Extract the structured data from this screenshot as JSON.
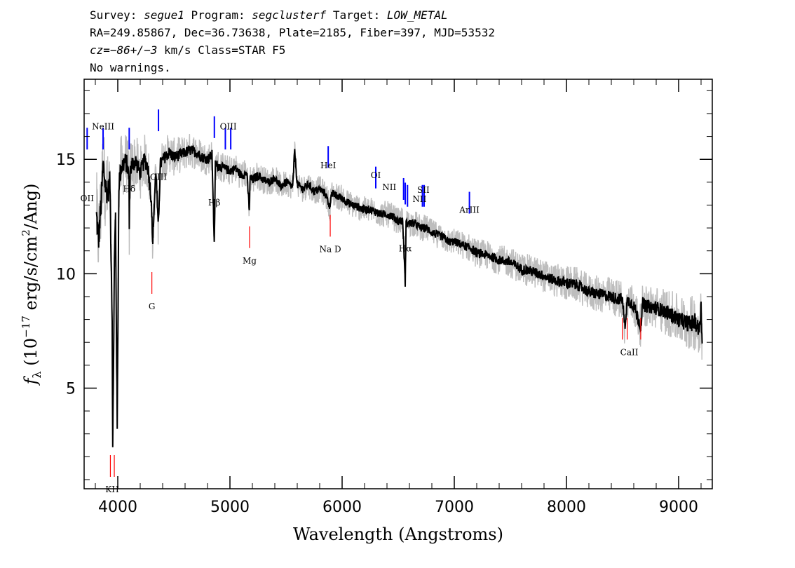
{
  "header": {
    "line1": {
      "survey_label": "Survey:",
      "survey": "segue1",
      "program_label": "Program:",
      "program": "segclusterf",
      "target_label": "Target:",
      "target": "LOW_METAL"
    },
    "line2": "RA=249.85867, Dec=36.73638, Plate=2185, Fiber=397, MJD=53532",
    "line3": {
      "cz": "cz=−86+/−3",
      "rest": " km/s Class=STAR F5"
    },
    "line4": "No warnings."
  },
  "colors": {
    "flux": "#000000",
    "error": "#bdbdbd",
    "emission": "#0000ff",
    "absorption": "#ff0000"
  },
  "chart_data": {
    "type": "line",
    "xlabel": "Wavelength (Angstroms)",
    "ylabel_parts": [
      "f",
      "λ",
      " (10",
      "−17",
      " erg/s/cm",
      "2",
      "/Ang)"
    ],
    "xlim": [
      3700,
      9300
    ],
    "ylim": [
      0.6,
      18.5
    ],
    "x_ticks": [
      4000,
      5000,
      6000,
      7000,
      8000,
      9000
    ],
    "x_tick_labels": [
      "4000",
      "5000",
      "6000",
      "7000",
      "8000",
      "9000"
    ],
    "y_ticks": [
      5,
      10,
      15
    ],
    "y_tick_labels": [
      "5",
      "10",
      "15"
    ],
    "series": [
      {
        "role": "flux",
        "x": [
          3810,
          3830,
          3850,
          3870,
          3890,
          3910,
          3930,
          3950,
          3955,
          3970,
          3980,
          3995,
          4010,
          4030,
          4060,
          4080,
          4100,
          4102,
          4110,
          4130,
          4160,
          4200,
          4240,
          4270,
          4300,
          4310,
          4340,
          4360,
          4380,
          4420,
          4460,
          4500,
          4560,
          4600,
          4650,
          4700,
          4750,
          4800,
          4840,
          4861,
          4870,
          4900,
          4950,
          5000,
          5050,
          5100,
          5150,
          5173,
          5180,
          5200,
          5250,
          5300,
          5350,
          5400,
          5450,
          5500,
          5560,
          5577,
          5600,
          5650,
          5700,
          5750,
          5800,
          5850,
          5893,
          5900,
          5950,
          6000,
          6050,
          6100,
          6150,
          6200,
          6250,
          6300,
          6350,
          6400,
          6450,
          6500,
          6540,
          6563,
          6570,
          6600,
          6650,
          6700,
          6750,
          6800,
          6850,
          6900,
          6950,
          7000,
          7050,
          7100,
          7150,
          7200,
          7300,
          7400,
          7500,
          7600,
          7700,
          7800,
          7900,
          8000,
          8100,
          8200,
          8300,
          8400,
          8450,
          8498,
          8520,
          8542,
          8560,
          8600,
          8662,
          8680,
          8700,
          8800,
          8900,
          9000,
          9100,
          9150,
          9180,
          9200,
          9210
        ],
        "y": [
          12.5,
          11.5,
          13.0,
          14.8,
          13.8,
          13.5,
          14.0,
          8.0,
          2.2,
          10.5,
          12.5,
          3.2,
          14.0,
          14.6,
          14.9,
          14.8,
          14.2,
          11.9,
          14.5,
          14.8,
          14.9,
          14.4,
          15.0,
          14.6,
          13.2,
          11.3,
          14.6,
          12.0,
          14.8,
          15.1,
          15.3,
          15.1,
          15.2,
          15.3,
          15.4,
          15.3,
          15.1,
          15.0,
          15.2,
          11.2,
          14.8,
          14.7,
          14.6,
          14.5,
          14.6,
          14.3,
          14.4,
          12.8,
          14.2,
          14.1,
          14.3,
          14.1,
          14.0,
          14.2,
          13.8,
          14.0,
          13.8,
          15.4,
          13.9,
          13.7,
          13.9,
          13.6,
          13.7,
          13.5,
          12.9,
          13.5,
          13.4,
          13.3,
          13.1,
          13.0,
          12.9,
          12.8,
          12.8,
          12.7,
          12.6,
          12.6,
          12.5,
          12.3,
          12.3,
          9.6,
          12.2,
          12.2,
          12.2,
          12.0,
          12.0,
          11.8,
          11.7,
          11.6,
          11.4,
          11.4,
          11.3,
          11.2,
          11.1,
          10.9,
          10.8,
          10.6,
          10.5,
          10.2,
          10.1,
          9.9,
          9.7,
          9.6,
          9.5,
          9.2,
          9.1,
          9.0,
          8.9,
          8.9,
          7.7,
          8.8,
          8.8,
          8.6,
          7.7,
          8.7,
          8.6,
          8.5,
          8.3,
          8.0,
          7.8,
          7.9,
          7.5,
          8.5,
          7.0
        ]
      },
      {
        "role": "error_envelope",
        "x": [
          3810,
          3900,
          4000,
          4100,
          4200,
          4300,
          4400,
          4500,
          4600,
          4700,
          4800,
          4900,
          5000,
          5200,
          5400,
          5600,
          5800,
          6000,
          6200,
          6400,
          6600,
          6800,
          7000,
          7200,
          7400,
          7600,
          7800,
          8000,
          8200,
          8400,
          8600,
          8800,
          9000,
          9200
        ],
        "y": [
          1.6,
          1.4,
          1.2,
          1.0,
          0.9,
          0.8,
          0.7,
          0.65,
          0.6,
          0.6,
          0.55,
          0.55,
          0.5,
          0.5,
          0.45,
          0.45,
          0.45,
          0.45,
          0.45,
          0.45,
          0.45,
          0.45,
          0.45,
          0.5,
          0.5,
          0.55,
          0.55,
          0.6,
          0.6,
          0.65,
          0.7,
          0.75,
          0.85,
          1.0
        ]
      }
    ],
    "line_markers": [
      {
        "label": "OII",
        "wavelength": 3727,
        "kind": "emission",
        "flux": 15.0
      },
      {
        "label": "NeIII",
        "wavelength": 3869,
        "kind": "emission",
        "flux": 15.0
      },
      {
        "label": "Hδ",
        "wavelength": 4102,
        "kind": "emission",
        "flux": 15.0
      },
      {
        "label": "OIII",
        "wavelength": 4363,
        "kind": "emission",
        "flux": 15.8
      },
      {
        "label": "Hβ",
        "wavelength": 4861,
        "kind": "emission",
        "flux": 15.5
      },
      {
        "label": "OIII",
        "wavelength": 4959,
        "kind": "emission",
        "flux": 15.0
      },
      {
        "label": "OIII",
        "wavelength": 5007,
        "kind": "emission",
        "flux": 15.0
      },
      {
        "label": "HeI",
        "wavelength": 5876,
        "kind": "emission",
        "flux": 14.2
      },
      {
        "label": "OI",
        "wavelength": 6300,
        "kind": "emission",
        "flux": 13.3
      },
      {
        "label": "NII",
        "wavelength": 6548,
        "kind": "emission",
        "flux": 12.8
      },
      {
        "label": "Hα",
        "wavelength": 6563,
        "kind": "emission",
        "flux": 12.6
      },
      {
        "label": "NII",
        "wavelength": 6583,
        "kind": "emission",
        "flux": 12.5
      },
      {
        "label": "SII",
        "wavelength": 6716,
        "kind": "emission",
        "flux": 12.5
      },
      {
        "label": "SII",
        "wavelength": 6731,
        "kind": "emission",
        "flux": 12.5
      },
      {
        "label": "ArIII",
        "wavelength": 7135,
        "kind": "emission",
        "flux": 12.2
      },
      {
        "label": "K",
        "wavelength": 3934,
        "kind": "absorption",
        "flux": 2.5
      },
      {
        "label": "H",
        "wavelength": 3969,
        "kind": "absorption",
        "flux": 2.5
      },
      {
        "label": "G",
        "wavelength": 4304,
        "kind": "absorption",
        "flux": 10.5
      },
      {
        "label": "Mg",
        "wavelength": 5175,
        "kind": "absorption",
        "flux": 12.5
      },
      {
        "label": "Na D",
        "wavelength": 5894,
        "kind": "absorption",
        "flux": 13.0
      },
      {
        "label": "CaII",
        "wavelength": 8498,
        "kind": "absorption",
        "flux": 8.5
      },
      {
        "label": "CaII",
        "wavelength": 8542,
        "kind": "absorption",
        "flux": 8.5
      },
      {
        "label": "CaII",
        "wavelength": 8662,
        "kind": "absorption",
        "flux": 8.5
      }
    ],
    "line_labels_shown": [
      "OII",
      "NeIII",
      "Hδ",
      "OIII",
      "Hβ",
      "OIII",
      "HeI",
      "OI",
      "NII",
      "Hα",
      "NII",
      "SII",
      "ArIII",
      "KH",
      "G",
      "Mg",
      "Na D",
      "CaII"
    ],
    "grid": false,
    "legend": "none"
  }
}
